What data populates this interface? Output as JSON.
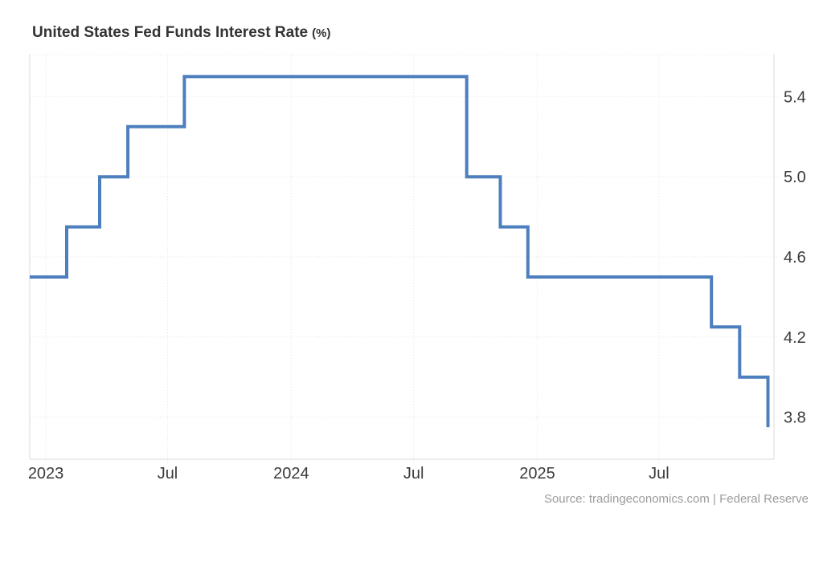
{
  "header": {
    "title": "United States Fed Funds Interest Rate",
    "title_unit": "(%)"
  },
  "footer": {
    "source": "Source: tradingeconomics.com | Federal Reserve"
  },
  "chart_data": {
    "type": "line",
    "subtype": "step-after",
    "title": "United States Fed Funds Interest Rate (%)",
    "legend": "none",
    "grid": "dotted",
    "x_domain": [
      "2022-12-08",
      "2025-12-19"
    ],
    "y_domain": [
      3.59,
      5.61
    ],
    "y_ticks": [
      {
        "value": 5.4,
        "label": "5.4"
      },
      {
        "value": 5.0,
        "label": "5.0"
      },
      {
        "value": 4.6,
        "label": "4.6"
      },
      {
        "value": 4.2,
        "label": "4.2"
      },
      {
        "value": 3.8,
        "label": "3.8"
      }
    ],
    "x_ticks": [
      {
        "date": "2023-01-01",
        "label": "2023"
      },
      {
        "date": "2023-07-01",
        "label": "Jul"
      },
      {
        "date": "2024-01-01",
        "label": "2024"
      },
      {
        "date": "2024-07-01",
        "label": "Jul"
      },
      {
        "date": "2025-01-01",
        "label": "2025"
      },
      {
        "date": "2025-07-01",
        "label": "Jul"
      }
    ],
    "series": [
      {
        "name": "United States Fed Funds Interest Rate",
        "color": "#4d7fbe",
        "points": [
          {
            "date": "2022-12-14",
            "value": 4.5
          },
          {
            "date": "2023-02-01",
            "value": 4.75
          },
          {
            "date": "2023-03-22",
            "value": 5.0
          },
          {
            "date": "2023-05-03",
            "value": 5.25
          },
          {
            "date": "2023-07-26",
            "value": 5.5
          },
          {
            "date": "2024-09-18",
            "value": 5.0
          },
          {
            "date": "2024-11-07",
            "value": 4.75
          },
          {
            "date": "2024-12-18",
            "value": 4.5
          },
          {
            "date": "2025-09-17",
            "value": 4.25
          },
          {
            "date": "2025-10-29",
            "value": 4.0
          },
          {
            "date": "2025-12-10",
            "value": 3.75
          }
        ]
      }
    ],
    "colors": {
      "line": "#4d7fbe",
      "grid": "#e3e3e3",
      "border": "#d9d9d9",
      "axis_text": "#3b3b3b",
      "title_text": "#333333",
      "source_text": "#9b9b9b",
      "background": "#ffffff"
    }
  }
}
